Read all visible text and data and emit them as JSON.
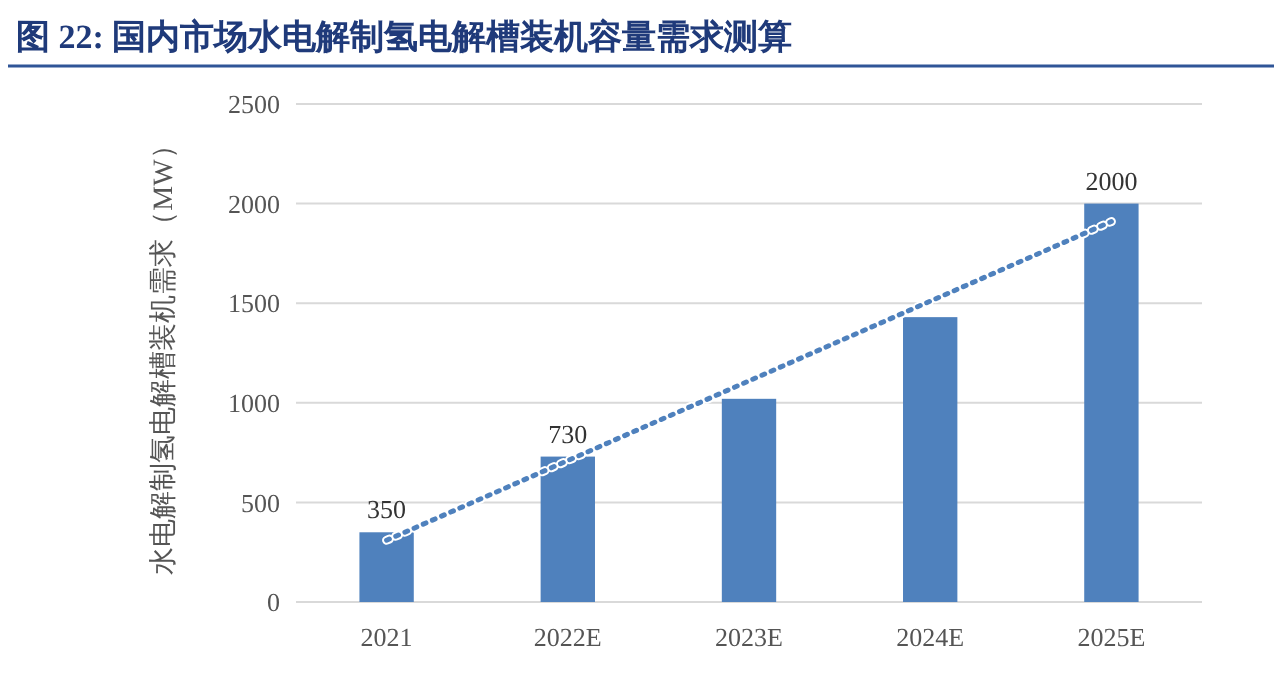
{
  "chart_data": {
    "type": "bar",
    "title": "图 22: 国内市场水电解制氢电解槽装机容量需求测算",
    "ylabel": "水电解制氢电解槽装机需求（MW）",
    "categories": [
      "2021",
      "2022E",
      "2023E",
      "2024E",
      "2025E"
    ],
    "series": [
      {
        "color": "#4f81bd",
        "values": [
          350,
          730,
          1020,
          1430,
          2000
        ],
        "value_labels": [
          "350",
          "730",
          null,
          null,
          "2000"
        ]
      },
      {
        "type": "line",
        "color": "#4f81bd",
        "values": [
          310,
          710,
          1110,
          1510,
          1910
        ],
        "line_style": "dotted"
      }
    ],
    "ylim": [
      0,
      2500
    ],
    "yticks": [
      0,
      500,
      1000,
      1500,
      2000,
      2500
    ],
    "grid": "y"
  }
}
